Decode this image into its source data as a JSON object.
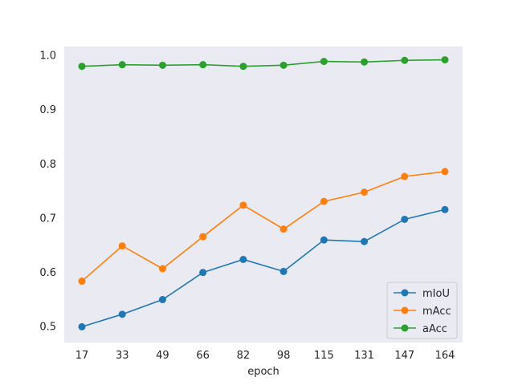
{
  "chart_data": {
    "type": "line",
    "title": "",
    "xlabel": "epoch",
    "ylabel": "",
    "categories": [
      "17",
      "33",
      "49",
      "66",
      "82",
      "98",
      "115",
      "131",
      "147",
      "164"
    ],
    "yticks": [
      "0.5",
      "0.6",
      "0.7",
      "0.8",
      "0.9",
      "1.0"
    ],
    "ylim": [
      0.47,
      1.0155
    ],
    "grid": false,
    "legend_position": "lower-right",
    "series": [
      {
        "name": "mIoU",
        "color": "#1f77b4",
        "values": [
          0.499,
          0.522,
          0.549,
          0.599,
          0.623,
          0.601,
          0.659,
          0.656,
          0.697,
          0.715
        ]
      },
      {
        "name": "mAcc",
        "color": "#ff7f0e",
        "values": [
          0.583,
          0.648,
          0.606,
          0.665,
          0.723,
          0.679,
          0.73,
          0.747,
          0.776,
          0.785
        ]
      },
      {
        "name": "aAcc",
        "color": "#2ca02c",
        "values": [
          0.979,
          0.982,
          0.981,
          0.982,
          0.979,
          0.981,
          0.988,
          0.987,
          0.99,
          0.991
        ]
      }
    ]
  }
}
